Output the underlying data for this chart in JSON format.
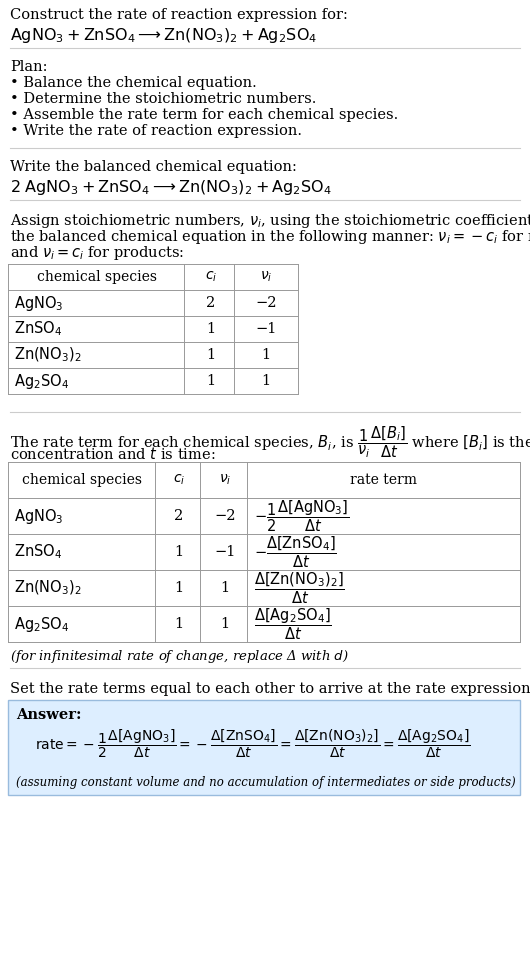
{
  "bg_color": "#ffffff",
  "text_color": "#000000",
  "line_color": "#cccccc",
  "table_line_color": "#999999",
  "answer_box_color": "#ddeeff",
  "answer_box_edge": "#99bbdd",
  "title_line1": "Construct the rate of reaction expression for:",
  "plan_header": "Plan:",
  "plan_items": [
    "• Balance the chemical equation.",
    "• Determine the stoichiometric numbers.",
    "• Assemble the rate term for each chemical species.",
    "• Write the rate of reaction expression."
  ],
  "balanced_header": "Write the balanced chemical equation:",
  "stoich_intro_lines": [
    "Assign stoichiometric numbers, $\\nu_i$, using the stoichiometric coefficients, $c_i$, from",
    "the balanced chemical equation in the following manner: $\\nu_i = -c_i$ for reactants",
    "and $\\nu_i = c_i$ for products:"
  ],
  "table1_species": [
    "$\\mathrm{AgNO_3}$",
    "$\\mathrm{ZnSO_4}$",
    "$\\mathrm{Zn(NO_3)_2}$",
    "$\\mathrm{Ag_2SO_4}$"
  ],
  "table1_ci": [
    "2",
    "1",
    "1",
    "1"
  ],
  "table1_vi": [
    "−2",
    "−1",
    "1",
    "1"
  ],
  "rate_intro_line1": "The rate term for each chemical species, $B_i$, is $\\dfrac{1}{\\nu_i}\\dfrac{\\Delta[B_i]}{\\Delta t}$ where $[B_i]$ is the amount",
  "rate_intro_line2": "concentration and $t$ is time:",
  "table2_species": [
    "$\\mathrm{AgNO_3}$",
    "$\\mathrm{ZnSO_4}$",
    "$\\mathrm{Zn(NO_3)_2}$",
    "$\\mathrm{Ag_2SO_4}$"
  ],
  "table2_ci": [
    "2",
    "1",
    "1",
    "1"
  ],
  "table2_vi": [
    "−2",
    "−1",
    "1",
    "1"
  ],
  "table2_rate": [
    "$-\\dfrac{1}{2}\\dfrac{\\Delta[\\mathrm{AgNO_3}]}{\\Delta t}$",
    "$-\\dfrac{\\Delta[\\mathrm{ZnSO_4}]}{\\Delta t}$",
    "$\\dfrac{\\Delta[\\mathrm{Zn(NO_3)_2}]}{\\Delta t}$",
    "$\\dfrac{\\Delta[\\mathrm{Ag_2SO_4}]}{\\Delta t}$"
  ],
  "infinitesimal_note": "(for infinitesimal rate of change, replace Δ with $d$)",
  "final_header": "Set the rate terms equal to each other to arrive at the rate expression:",
  "answer_label": "Answer:",
  "assuming_note": "(assuming constant volume and no accumulation of intermediates or side products)"
}
